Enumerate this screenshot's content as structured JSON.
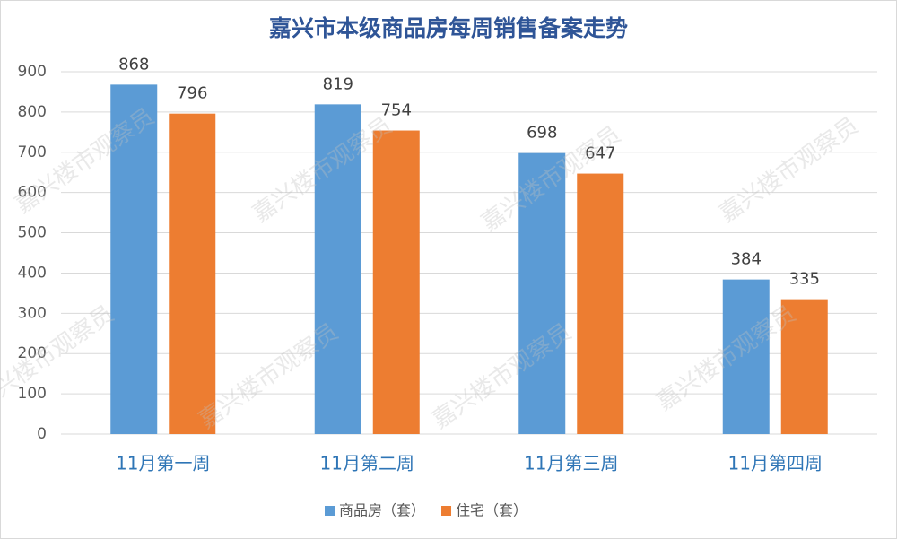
{
  "chart_data": {
    "type": "bar",
    "title": "嘉兴市本级商品房每周销售备案走势",
    "categories": [
      "11月第一周",
      "11月第二周",
      "11月第三周",
      "11月第四周"
    ],
    "series": [
      {
        "name": "商品房（套）",
        "color": "#5b9bd5",
        "values": [
          868,
          819,
          698,
          384
        ]
      },
      {
        "name": "住宅（套）",
        "color": "#ed7d31",
        "values": [
          796,
          754,
          647,
          335
        ]
      }
    ],
    "ylim": [
      0,
      900
    ],
    "yticks": [
      0,
      100,
      200,
      300,
      400,
      500,
      600,
      700,
      800,
      900
    ],
    "grid": true,
    "legend": "bottom",
    "watermark": "嘉兴楼市观察员"
  }
}
